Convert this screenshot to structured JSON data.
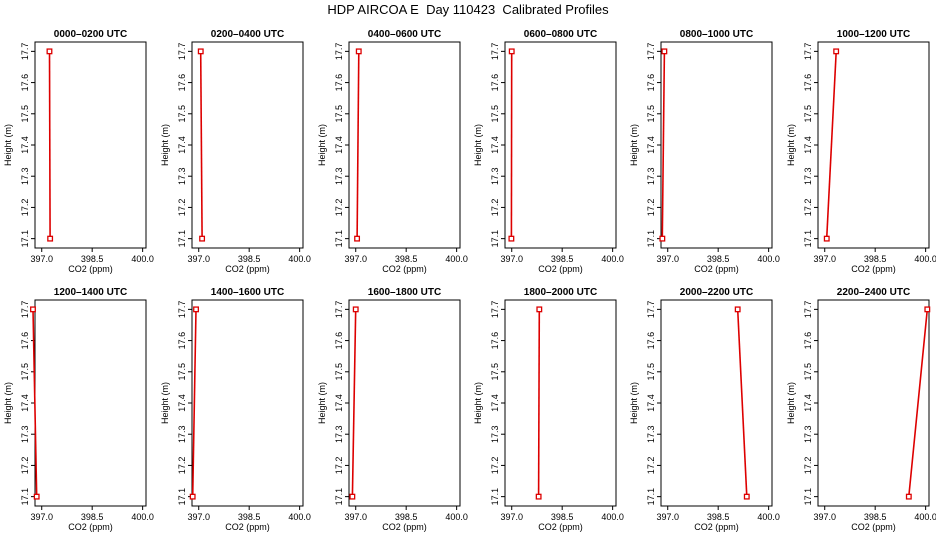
{
  "title": "HDP AIRCOA E  Day 110423  Calibrated Profiles",
  "colors": {
    "line": "#dd0000",
    "frame": "#000000"
  },
  "chart_data": [
    {
      "type": "line",
      "title": "0000–0200 UTC",
      "xlabel": "CO2 (ppm)",
      "ylabel": "Height (m)",
      "xlim": [
        396.8,
        400.1
      ],
      "ylim": [
        17.07,
        17.73
      ],
      "xticks": [
        "397.0",
        "398.5",
        "400.0"
      ],
      "yticks": [
        "17.1",
        "17.2",
        "17.3",
        "17.4",
        "17.5",
        "17.6",
        "17.7"
      ],
      "x": [
        397.25,
        397.23
      ],
      "y": [
        17.1,
        17.7
      ]
    },
    {
      "type": "line",
      "title": "0200–0400 UTC",
      "xlabel": "CO2 (ppm)",
      "ylabel": "Height (m)",
      "xlim": [
        396.8,
        400.1
      ],
      "ylim": [
        17.07,
        17.73
      ],
      "xticks": [
        "397.0",
        "398.5",
        "400.0"
      ],
      "yticks": [
        "17.1",
        "17.2",
        "17.3",
        "17.4",
        "17.5",
        "17.6",
        "17.7"
      ],
      "x": [
        397.1,
        397.06
      ],
      "y": [
        17.1,
        17.7
      ]
    },
    {
      "type": "line",
      "title": "0400–0600 UTC",
      "xlabel": "CO2 (ppm)",
      "ylabel": "Height (m)",
      "xlim": [
        396.8,
        400.1
      ],
      "ylim": [
        17.07,
        17.73
      ],
      "xticks": [
        "397.0",
        "398.5",
        "400.0"
      ],
      "yticks": [
        "17.1",
        "17.2",
        "17.3",
        "17.4",
        "17.5",
        "17.6",
        "17.7"
      ],
      "x": [
        397.04,
        397.09
      ],
      "y": [
        17.1,
        17.7
      ]
    },
    {
      "type": "line",
      "title": "0600–0800 UTC",
      "xlabel": "CO2 (ppm)",
      "ylabel": "Height (m)",
      "xlim": [
        396.8,
        400.1
      ],
      "ylim": [
        17.07,
        17.73
      ],
      "xticks": [
        "397.0",
        "398.5",
        "400.0"
      ],
      "yticks": [
        "17.1",
        "17.2",
        "17.3",
        "17.4",
        "17.5",
        "17.6",
        "17.7"
      ],
      "x": [
        396.99,
        397.0
      ],
      "y": [
        17.1,
        17.7
      ]
    },
    {
      "type": "line",
      "title": "0800–1000 UTC",
      "xlabel": "CO2 (ppm)",
      "ylabel": "Height (m)",
      "xlim": [
        396.8,
        400.1
      ],
      "ylim": [
        17.07,
        17.73
      ],
      "xticks": [
        "397.0",
        "398.5",
        "400.0"
      ],
      "yticks": [
        "17.1",
        "17.2",
        "17.3",
        "17.4",
        "17.5",
        "17.6",
        "17.7"
      ],
      "x": [
        396.84,
        396.9
      ],
      "y": [
        17.1,
        17.7
      ]
    },
    {
      "type": "line",
      "title": "1000–1200 UTC",
      "xlabel": "CO2 (ppm)",
      "ylabel": "Height (m)",
      "xlim": [
        396.8,
        400.1
      ],
      "ylim": [
        17.07,
        17.73
      ],
      "xticks": [
        "397.0",
        "398.5",
        "400.0"
      ],
      "yticks": [
        "17.1",
        "17.2",
        "17.3",
        "17.4",
        "17.5",
        "17.6",
        "17.7"
      ],
      "x": [
        397.06,
        397.34
      ],
      "y": [
        17.1,
        17.7
      ]
    },
    {
      "type": "line",
      "title": "1200–1400 UTC",
      "xlabel": "CO2 (ppm)",
      "ylabel": "Height (m)",
      "xlim": [
        396.8,
        400.1
      ],
      "ylim": [
        17.07,
        17.73
      ],
      "xticks": [
        "397.0",
        "398.5",
        "400.0"
      ],
      "yticks": [
        "17.1",
        "17.2",
        "17.3",
        "17.4",
        "17.5",
        "17.6",
        "17.7"
      ],
      "x": [
        396.85,
        396.74
      ],
      "y": [
        17.1,
        17.7
      ]
    },
    {
      "type": "line",
      "title": "1400–1600 UTC",
      "xlabel": "CO2 (ppm)",
      "ylabel": "Height (m)",
      "xlim": [
        396.8,
        400.1
      ],
      "ylim": [
        17.07,
        17.73
      ],
      "xticks": [
        "397.0",
        "398.5",
        "400.0"
      ],
      "yticks": [
        "17.1",
        "17.2",
        "17.3",
        "17.4",
        "17.5",
        "17.6",
        "17.7"
      ],
      "x": [
        396.82,
        396.92
      ],
      "y": [
        17.1,
        17.7
      ]
    },
    {
      "type": "line",
      "title": "1600–1800 UTC",
      "xlabel": "CO2 (ppm)",
      "ylabel": "Height (m)",
      "xlim": [
        396.8,
        400.1
      ],
      "ylim": [
        17.07,
        17.73
      ],
      "xticks": [
        "397.0",
        "398.5",
        "400.0"
      ],
      "yticks": [
        "17.1",
        "17.2",
        "17.3",
        "17.4",
        "17.5",
        "17.6",
        "17.7"
      ],
      "x": [
        396.9,
        397.0
      ],
      "y": [
        17.1,
        17.7
      ]
    },
    {
      "type": "line",
      "title": "1800–2000 UTC",
      "xlabel": "CO2 (ppm)",
      "ylabel": "Height (m)",
      "xlim": [
        396.8,
        400.1
      ],
      "ylim": [
        17.07,
        17.73
      ],
      "xticks": [
        "397.0",
        "398.5",
        "400.0"
      ],
      "yticks": [
        "17.1",
        "17.2",
        "17.3",
        "17.4",
        "17.5",
        "17.6",
        "17.7"
      ],
      "x": [
        397.8,
        397.82
      ],
      "y": [
        17.1,
        17.7
      ]
    },
    {
      "type": "line",
      "title": "2000–2200 UTC",
      "xlabel": "CO2 (ppm)",
      "ylabel": "Height (m)",
      "xlim": [
        396.8,
        400.1
      ],
      "ylim": [
        17.07,
        17.73
      ],
      "xticks": [
        "397.0",
        "398.5",
        "400.0"
      ],
      "yticks": [
        "17.1",
        "17.2",
        "17.3",
        "17.4",
        "17.5",
        "17.6",
        "17.7"
      ],
      "x": [
        399.35,
        399.08
      ],
      "y": [
        17.1,
        17.7
      ]
    },
    {
      "type": "line",
      "title": "2200–2400 UTC",
      "xlabel": "CO2 (ppm)",
      "ylabel": "Height (m)",
      "xlim": [
        396.8,
        400.1
      ],
      "ylim": [
        17.07,
        17.73
      ],
      "xticks": [
        "397.0",
        "398.5",
        "400.0"
      ],
      "yticks": [
        "17.1",
        "17.2",
        "17.3",
        "17.4",
        "17.5",
        "17.6",
        "17.7"
      ],
      "x": [
        399.5,
        400.05
      ],
      "y": [
        17.1,
        17.7
      ]
    }
  ]
}
